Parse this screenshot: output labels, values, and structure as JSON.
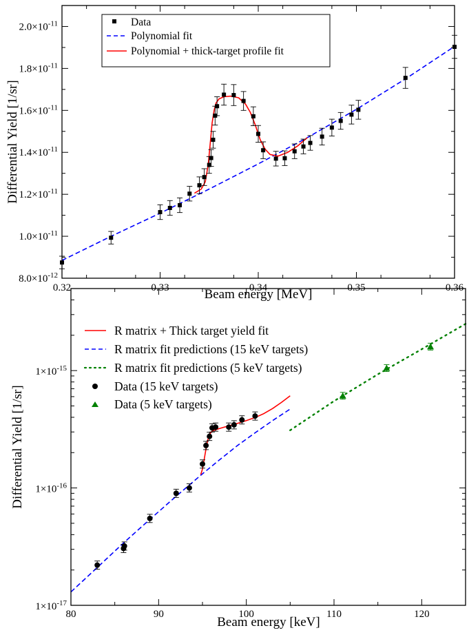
{
  "charts": [
    {
      "type": "scatter",
      "xlabel": "Beam energy [MeV]",
      "ylabel": "Differential Yield [1/sr]",
      "xlim": [
        0.32,
        0.36
      ],
      "ylim": [
        8e-12,
        2.1e-11
      ],
      "yscale": "linear",
      "xticks": [
        {
          "v": 0.32,
          "label": "0.32"
        },
        {
          "v": 0.33,
          "label": "0.33"
        },
        {
          "v": 0.34,
          "label": "0.34"
        },
        {
          "v": 0.35,
          "label": "0.35"
        },
        {
          "v": 0.36,
          "label": "0.36"
        }
      ],
      "yticks": [
        {
          "v": 8e-12,
          "mant": "8.0×10",
          "exp": "-12"
        },
        {
          "v": 1e-11,
          "mant": "1.0×10",
          "exp": "-11"
        },
        {
          "v": 1.2e-11,
          "mant": "1.2×10",
          "exp": "-11"
        },
        {
          "v": 1.4e-11,
          "mant": "1.4×10",
          "exp": "-11"
        },
        {
          "v": 1.6e-11,
          "mant": "1.6×10",
          "exp": "-11"
        },
        {
          "v": 1.8e-11,
          "mant": "1.8×10",
          "exp": "-11"
        },
        {
          "v": 2e-11,
          "mant": "2.0×10",
          "exp": "-11"
        }
      ],
      "legend_position": "top-left",
      "legend": [
        {
          "label": "Data",
          "kind": "square",
          "color": "#000000"
        },
        {
          "label": "Polynomial fit",
          "kind": "dashed",
          "color": "#0000ff"
        },
        {
          "label": "Polynomial + thick-target profile fit",
          "kind": "solid",
          "color": "#ff0000"
        }
      ],
      "data": {
        "name": "Data",
        "color": "#000000",
        "points": [
          {
            "x": 0.32,
            "y": 8.75e-12,
            "err": 3e-13
          },
          {
            "x": 0.325,
            "y": 9.93e-12,
            "err": 3e-13
          },
          {
            "x": 0.33,
            "y": 1.115e-11,
            "err": 3.5e-13
          },
          {
            "x": 0.331,
            "y": 1.135e-11,
            "err": 3.5e-13
          },
          {
            "x": 0.332,
            "y": 1.148e-11,
            "err": 3.5e-13
          },
          {
            "x": 0.333,
            "y": 1.203e-11,
            "err": 3.5e-13
          },
          {
            "x": 0.334,
            "y": 1.243e-11,
            "err": 4e-13
          },
          {
            "x": 0.3345,
            "y": 1.282e-11,
            "err": 4e-13
          },
          {
            "x": 0.335,
            "y": 1.34e-11,
            "err": 4e-13
          },
          {
            "x": 0.3352,
            "y": 1.373e-11,
            "err": 4e-13
          },
          {
            "x": 0.3354,
            "y": 1.46e-11,
            "err": 4e-13
          },
          {
            "x": 0.3356,
            "y": 1.575e-11,
            "err": 4.5e-13
          },
          {
            "x": 0.3358,
            "y": 1.62e-11,
            "err": 4.5e-13
          },
          {
            "x": 0.3365,
            "y": 1.675e-11,
            "err": 5e-13
          },
          {
            "x": 0.3375,
            "y": 1.673e-11,
            "err": 5e-13
          },
          {
            "x": 0.3385,
            "y": 1.645e-11,
            "err": 4.5e-13
          },
          {
            "x": 0.3395,
            "y": 1.572e-11,
            "err": 4.5e-13
          },
          {
            "x": 0.34,
            "y": 1.488e-11,
            "err": 4e-13
          },
          {
            "x": 0.3405,
            "y": 1.41e-11,
            "err": 4e-13
          },
          {
            "x": 0.3418,
            "y": 1.37e-11,
            "err": 3.5e-13
          },
          {
            "x": 0.3427,
            "y": 1.372e-11,
            "err": 3.5e-13
          },
          {
            "x": 0.3437,
            "y": 1.405e-11,
            "err": 3.5e-13
          },
          {
            "x": 0.3446,
            "y": 1.428e-11,
            "err": 3.5e-13
          },
          {
            "x": 0.3453,
            "y": 1.445e-11,
            "err": 3.5e-13
          },
          {
            "x": 0.3465,
            "y": 1.475e-11,
            "err": 4e-13
          },
          {
            "x": 0.3475,
            "y": 1.518e-11,
            "err": 4e-13
          },
          {
            "x": 0.3484,
            "y": 1.55e-11,
            "err": 4e-13
          },
          {
            "x": 0.3495,
            "y": 1.58e-11,
            "err": 4.5e-13
          },
          {
            "x": 0.3502,
            "y": 1.603e-11,
            "err": 4.5e-13
          },
          {
            "x": 0.355,
            "y": 1.755e-11,
            "err": 5e-13
          },
          {
            "x": 0.36,
            "y": 1.903e-11,
            "err": 5.5e-13
          }
        ]
      },
      "polynomial_fit": {
        "name": "Polynomial fit",
        "color": "#0000ff",
        "x": [
          0.32,
          0.325,
          0.33,
          0.335,
          0.34,
          0.345,
          0.35,
          0.355,
          0.36
        ],
        "y": [
          8.85e-12,
          1e-11,
          1.11e-11,
          1.225e-11,
          1.345e-11,
          1.47e-11,
          1.605e-11,
          1.75e-11,
          1.905e-11
        ]
      },
      "profile_fit": {
        "name": "Polynomial + thick-target profile fit",
        "color": "#ff0000",
        "x": [
          0.3335,
          0.3342,
          0.3346,
          0.3349,
          0.3351,
          0.3353,
          0.3355,
          0.3357,
          0.336,
          0.3365,
          0.3372,
          0.338,
          0.3387,
          0.3392,
          0.3397,
          0.3402,
          0.3407,
          0.3412,
          0.342,
          0.343,
          0.344,
          0.345
        ],
        "y": [
          1.205e-11,
          1.225e-11,
          1.26e-11,
          1.34e-11,
          1.44e-11,
          1.54e-11,
          1.6e-11,
          1.635e-11,
          1.655e-11,
          1.665e-11,
          1.668e-11,
          1.66e-11,
          1.63e-11,
          1.59e-11,
          1.53e-11,
          1.46e-11,
          1.415e-11,
          1.39e-11,
          1.382e-11,
          1.4e-11,
          1.43e-11,
          1.47e-11
        ]
      }
    },
    {
      "type": "scatter",
      "xlabel": "Beam energy [keV]",
      "ylabel": "Differential Yield [1/sr]",
      "xlim": [
        80,
        125
      ],
      "ylim": [
        1e-17,
        5e-15
      ],
      "yscale": "log",
      "xticks": [
        {
          "v": 80,
          "label": "80"
        },
        {
          "v": 90,
          "label": "90"
        },
        {
          "v": 100,
          "label": "100"
        },
        {
          "v": 110,
          "label": "110"
        },
        {
          "v": 120,
          "label": "120"
        }
      ],
      "yticks": [
        {
          "v": 1e-17,
          "mant": "1×10",
          "exp": "-17"
        },
        {
          "v": 1e-16,
          "mant": "1×10",
          "exp": "-16"
        },
        {
          "v": 1e-15,
          "mant": "1×10",
          "exp": "-15"
        }
      ],
      "legend_position": "top-left",
      "legend": [
        {
          "label": "R matrix + Thick target yield fit",
          "kind": "solid",
          "color": "#ff0000"
        },
        {
          "label": "R matrix fit predictions (15 keV targets)",
          "kind": "dashed",
          "color": "#0000ff"
        },
        {
          "label": "R matrix fit predictions (5 keV targets)",
          "kind": "dotted",
          "color": "#008000"
        },
        {
          "label": "Data (15 keV targets)",
          "kind": "circle",
          "color": "#000000"
        },
        {
          "label": "Data (5 keV targets)",
          "kind": "triangle",
          "color": "#008000"
        }
      ],
      "data15": {
        "name": "Data (15 keV targets)",
        "color": "#000000",
        "points": [
          {
            "x": 83.0,
            "y": 2.2e-17
          },
          {
            "x": 86.0,
            "y": 3.05e-17
          },
          {
            "x": 86.1,
            "y": 3.2e-17
          },
          {
            "x": 89.0,
            "y": 5.5e-17
          },
          {
            "x": 92.0,
            "y": 9e-17
          },
          {
            "x": 93.5,
            "y": 1e-16
          },
          {
            "x": 95.0,
            "y": 1.6e-16
          },
          {
            "x": 95.4,
            "y": 2.3e-16
          },
          {
            "x": 95.8,
            "y": 2.75e-16
          },
          {
            "x": 96.1,
            "y": 3.25e-16
          },
          {
            "x": 96.5,
            "y": 3.3e-16
          },
          {
            "x": 98.0,
            "y": 3.3e-16
          },
          {
            "x": 98.6,
            "y": 3.45e-16
          },
          {
            "x": 99.5,
            "y": 3.8e-16
          },
          {
            "x": 101.0,
            "y": 4.1e-16
          }
        ]
      },
      "data5": {
        "name": "Data (5 keV targets)",
        "color": "#008000",
        "points": [
          {
            "x": 111.0,
            "y": 6.1e-16
          },
          {
            "x": 116.0,
            "y": 1.05e-15
          },
          {
            "x": 121.0,
            "y": 1.6e-15
          }
        ]
      },
      "rmatrix_fit": {
        "name": "R matrix + Thick target yield fit",
        "color": "#ff0000",
        "x": [
          94.8,
          95.0,
          95.2,
          95.4,
          95.6,
          95.8,
          96.0,
          96.3,
          97.0,
          98.0,
          99.0,
          100.0,
          101.0,
          102.0,
          103.0,
          104.0,
          105.0
        ],
        "y": [
          1.3e-16,
          1.45e-16,
          1.75e-16,
          2.15e-16,
          2.55e-16,
          2.85e-16,
          3e-16,
          3.1e-16,
          3.22e-16,
          3.38e-16,
          3.55e-16,
          3.75e-16,
          3.98e-16,
          4.3e-16,
          4.75e-16,
          5.35e-16,
          6.1e-16
        ]
      },
      "pred15": {
        "name": "R matrix fit predictions (15 keV targets)",
        "color": "#0000ff",
        "x": [
          80,
          83,
          86,
          89,
          92,
          95,
          97,
          99,
          101,
          103,
          105
        ],
        "y": [
          1.3e-17,
          2.1e-17,
          3.4e-17,
          5.4e-17,
          8.5e-17,
          1.32e-16,
          1.75e-16,
          2.3e-16,
          2.95e-16,
          3.75e-16,
          4.7e-16
        ]
      },
      "pred5": {
        "name": "R matrix fit predictions (5 keV targets)",
        "color": "#008000",
        "x": [
          105,
          110,
          115,
          120,
          125
        ],
        "y": [
          3.1e-16,
          5.5e-16,
          9.3e-16,
          1.52e-15,
          2.5e-15
        ]
      }
    }
  ]
}
